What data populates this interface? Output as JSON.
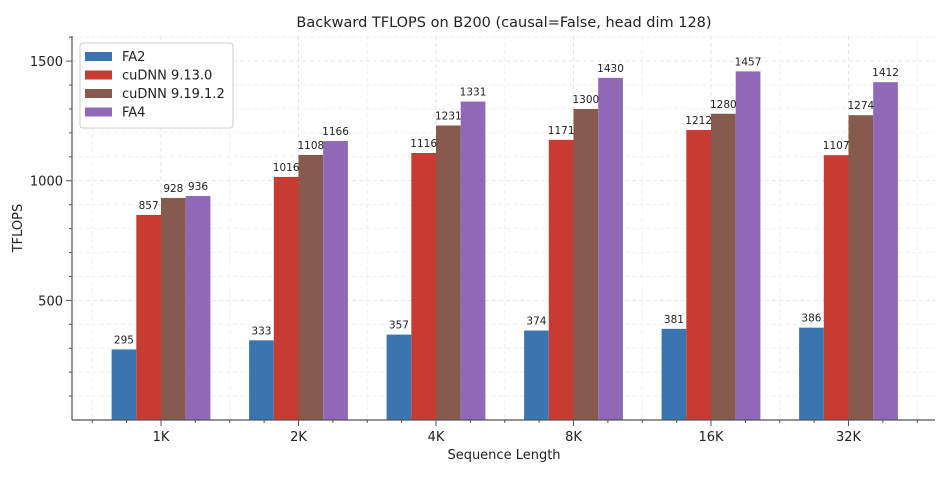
{
  "chart_data": {
    "type": "bar",
    "title": "Backward TFLOPS on B200 (causal=False, head dim 128)",
    "xlabel": "Sequence Length",
    "ylabel": "TFLOPS",
    "categories": [
      "1K",
      "2K",
      "4K",
      "8K",
      "16K",
      "32K"
    ],
    "ylim": [
      0,
      1605
    ],
    "yticks": [
      500,
      1000,
      1500
    ],
    "ytick_labels": [
      "500",
      "1000",
      "1500"
    ],
    "grid": true,
    "legend_position": "top-left",
    "series": [
      {
        "name": "FA2",
        "color": "#3a75b0",
        "values": [
          295,
          333,
          357,
          374,
          381,
          386
        ]
      },
      {
        "name": "cuDNN 9.13.0",
        "color": "#c83b33",
        "values": [
          857,
          1016,
          1116,
          1171,
          1212,
          1107
        ]
      },
      {
        "name": "cuDNN 9.19.1.2",
        "color": "#875a4e",
        "values": [
          928,
          1108,
          1231,
          1300,
          1280,
          1274
        ]
      },
      {
        "name": "FA4",
        "color": "#8f69b8",
        "values": [
          936,
          1166,
          1331,
          1430,
          1457,
          1412
        ]
      }
    ]
  }
}
